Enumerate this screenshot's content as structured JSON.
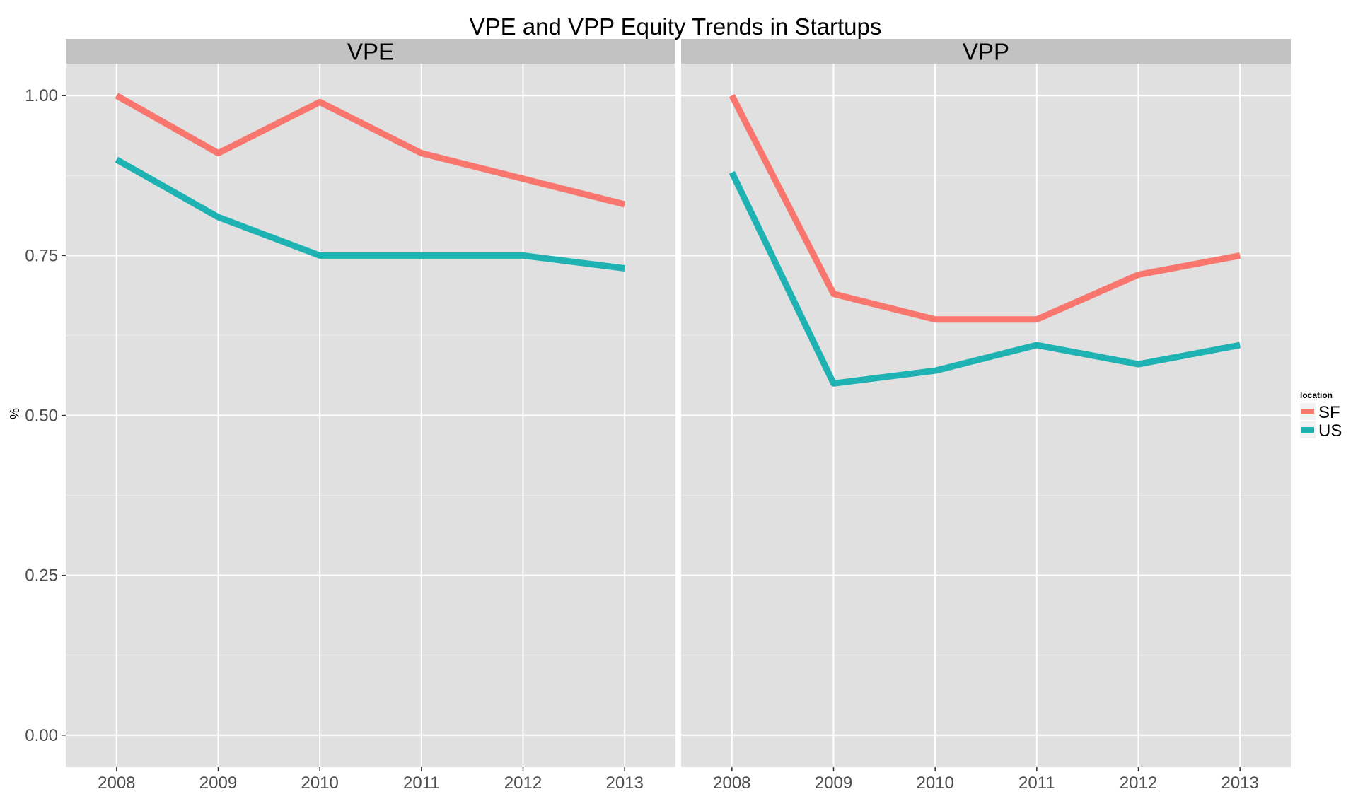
{
  "chart_data": {
    "type": "line",
    "title": "VPE and VPP Equity Trends in Startups",
    "xlabel": "",
    "ylabel": "%",
    "ylim": [
      -0.05,
      1.05
    ],
    "yticks": [
      "0.00",
      "0.25",
      "0.50",
      "0.75",
      "1.00"
    ],
    "ytick_values": [
      0,
      0.25,
      0.5,
      0.75,
      1.0
    ],
    "categories": [
      "2008",
      "2009",
      "2010",
      "2011",
      "2012",
      "2013"
    ],
    "grid": true,
    "legend": {
      "title": "location",
      "position": "right",
      "entries": [
        {
          "name": "SF",
          "color": "#F8766D"
        },
        {
          "name": "US",
          "color": "#1EB2B2"
        }
      ]
    },
    "panels": [
      {
        "label": "VPE",
        "series": [
          {
            "name": "SF",
            "values": [
              1.0,
              0.91,
              0.99,
              0.91,
              0.87,
              0.83
            ]
          },
          {
            "name": "US",
            "values": [
              0.9,
              0.81,
              0.75,
              0.75,
              0.75,
              0.73
            ]
          }
        ]
      },
      {
        "label": "VPP",
        "series": [
          {
            "name": "SF",
            "values": [
              1.0,
              0.69,
              0.65,
              0.65,
              0.72,
              0.75
            ]
          },
          {
            "name": "US",
            "values": [
              0.88,
              0.55,
              0.57,
              0.61,
              0.58,
              0.61
            ]
          }
        ]
      }
    ]
  },
  "colors": {
    "panel_bg": "#E0E0E0",
    "strip_bg": "#C2C2C2",
    "grid_major": "#FFFFFF",
    "grid_minor": "#EBEBEB"
  }
}
